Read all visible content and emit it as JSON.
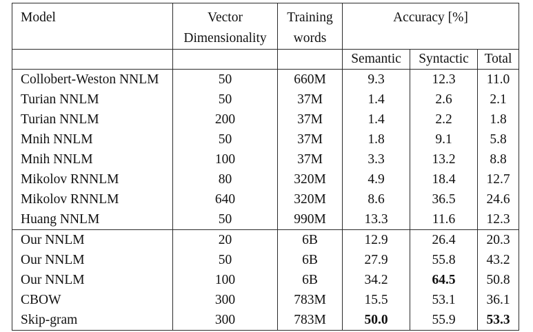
{
  "table": {
    "headers": {
      "model": "Model",
      "vector_dim": [
        "Vector",
        "Dimensionality"
      ],
      "training_words": [
        "Training",
        "words"
      ],
      "accuracy": "Accuracy [%]",
      "semantic": "Semantic",
      "syntactic": "Syntactic",
      "total": "Total"
    },
    "group1": [
      {
        "model": "Collobert-Weston NNLM",
        "dim": "50",
        "words": "660M",
        "semantic": "9.3",
        "syntactic": "12.3",
        "total": "11.0"
      },
      {
        "model": "Turian NNLM",
        "dim": "50",
        "words": "37M",
        "semantic": "1.4",
        "syntactic": "2.6",
        "total": "2.1"
      },
      {
        "model": "Turian NNLM",
        "dim": "200",
        "words": "37M",
        "semantic": "1.4",
        "syntactic": "2.2",
        "total": "1.8"
      },
      {
        "model": "Mnih NNLM",
        "dim": "50",
        "words": "37M",
        "semantic": "1.8",
        "syntactic": "9.1",
        "total": "5.8"
      },
      {
        "model": "Mnih NNLM",
        "dim": "100",
        "words": "37M",
        "semantic": "3.3",
        "syntactic": "13.2",
        "total": "8.8"
      },
      {
        "model": "Mikolov RNNLM",
        "dim": "80",
        "words": "320M",
        "semantic": "4.9",
        "syntactic": "18.4",
        "total": "12.7"
      },
      {
        "model": "Mikolov RNNLM",
        "dim": "640",
        "words": "320M",
        "semantic": "8.6",
        "syntactic": "36.5",
        "total": "24.6"
      },
      {
        "model": "Huang NNLM",
        "dim": "50",
        "words": "990M",
        "semantic": "13.3",
        "syntactic": "11.6",
        "total": "12.3"
      }
    ],
    "group2": [
      {
        "model": "Our NNLM",
        "dim": "20",
        "words": "6B",
        "semantic": "12.9",
        "syntactic": "26.4",
        "total": "20.3"
      },
      {
        "model": "Our NNLM",
        "dim": "50",
        "words": "6B",
        "semantic": "27.9",
        "syntactic": "55.8",
        "total": "43.2"
      },
      {
        "model": "Our NNLM",
        "dim": "100",
        "words": "6B",
        "semantic": "34.2",
        "syntactic": "64.5",
        "total": "50.8"
      },
      {
        "model": "CBOW",
        "dim": "300",
        "words": "783M",
        "semantic": "15.5",
        "syntactic": "53.1",
        "total": "36.1"
      },
      {
        "model": "Skip-gram",
        "dim": "300",
        "words": "783M",
        "semantic": "50.0",
        "syntactic": "55.9",
        "total": "53.3"
      }
    ],
    "bold_cells": [
      "group2.2.syntactic",
      "group2.4.semantic",
      "group2.4.total"
    ]
  }
}
